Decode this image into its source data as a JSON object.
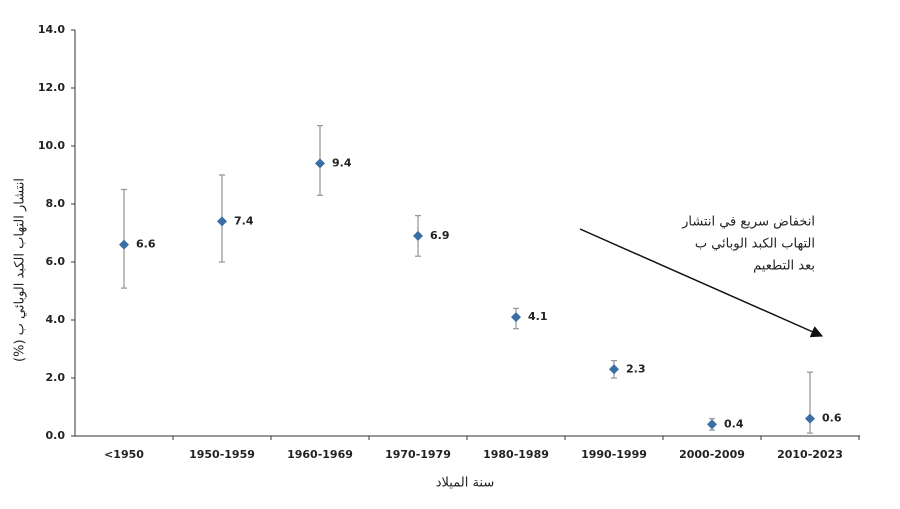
{
  "chart_data": {
    "type": "errorbar",
    "y_axis_label": "انتشار التهاب الكبد الوبائي ب (%)",
    "x_axis_label": "سنة الميلاد",
    "annotation": [
      "انخفاض سريع في انتشار",
      "التهاب الكبد الوبائي ب",
      "بعد التطعيم"
    ],
    "categories": [
      "<1950",
      "1950-1959",
      "1960-1969",
      "1970-1979",
      "1980-1989",
      "1990-1999",
      "2000-2009",
      "2010-2023"
    ],
    "values": [
      6.6,
      7.4,
      9.4,
      6.9,
      4.1,
      2.3,
      0.4,
      0.6
    ],
    "lower": [
      5.1,
      6.0,
      8.3,
      6.2,
      3.7,
      2.0,
      0.2,
      0.1
    ],
    "upper": [
      8.5,
      9.0,
      10.7,
      7.6,
      4.4,
      2.6,
      0.6,
      2.2
    ],
    "color": "#3a6ea5",
    "error_color": "#9a9a9a",
    "ylim": [
      0,
      14
    ],
    "yticks": [
      {
        "value": 0,
        "label": "0.0"
      },
      {
        "value": 2,
        "label": "2.0"
      },
      {
        "value": 4,
        "label": "4.0"
      },
      {
        "value": 6,
        "label": "6.0"
      },
      {
        "value": 8,
        "label": "8.0"
      },
      {
        "value": 10,
        "label": "10.0"
      },
      {
        "value": 12,
        "label": "12.0"
      },
      {
        "value": 14,
        "label": "14.0"
      }
    ]
  }
}
